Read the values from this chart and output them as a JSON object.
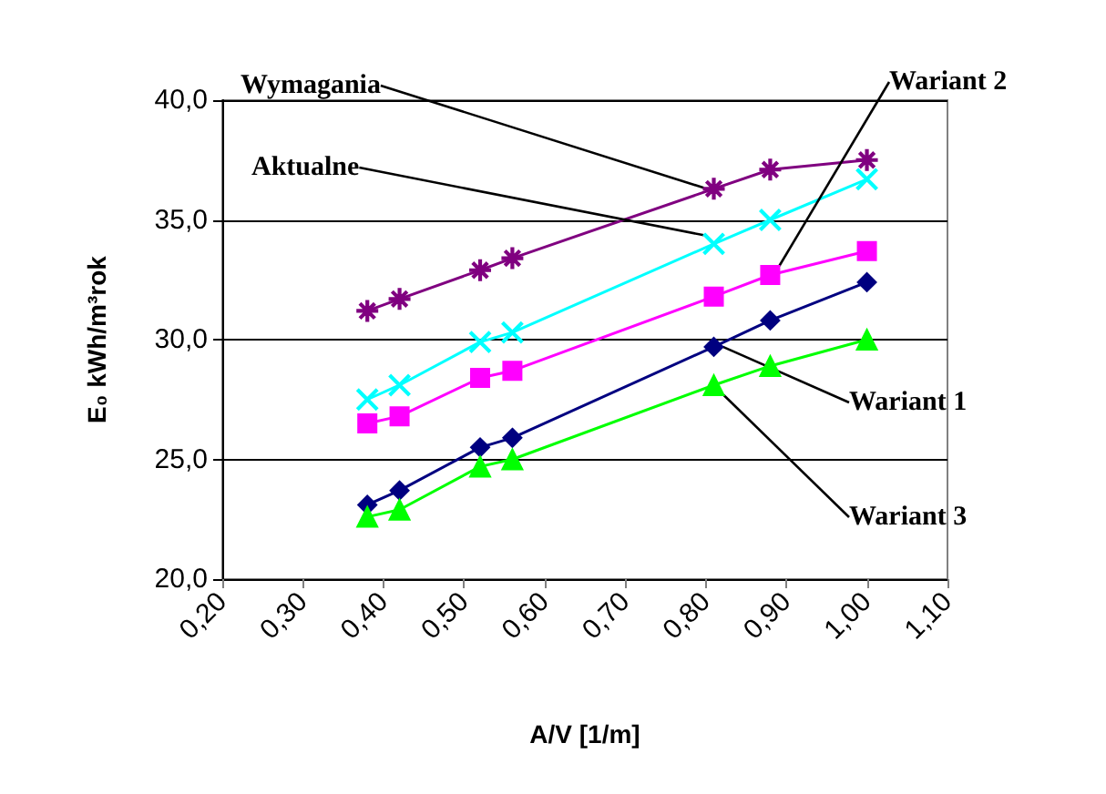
{
  "chart_data": {
    "type": "line",
    "xlabel": "A/V [1/m]",
    "ylabel": "E₀ kWh/m³rok",
    "xlim": [
      0.2,
      1.1
    ],
    "xticks": [
      {
        "value": 0.2,
        "label": "0,20"
      },
      {
        "value": 0.3,
        "label": "0,30"
      },
      {
        "value": 0.4,
        "label": "0,40"
      },
      {
        "value": 0.5,
        "label": "0,50"
      },
      {
        "value": 0.6,
        "label": "0,60"
      },
      {
        "value": 0.7,
        "label": "0,70"
      },
      {
        "value": 0.8,
        "label": "0,80"
      },
      {
        "value": 0.9,
        "label": "0,90"
      },
      {
        "value": 1.0,
        "label": "1,00"
      },
      {
        "value": 1.1,
        "label": "1,10"
      }
    ],
    "ylim": [
      20,
      40
    ],
    "yticks": [
      {
        "value": 20,
        "label": "20,0"
      },
      {
        "value": 25,
        "label": "25,0"
      },
      {
        "value": 30,
        "label": "30,0"
      },
      {
        "value": 35,
        "label": "35,0"
      },
      {
        "value": 40,
        "label": "40,0"
      }
    ],
    "x": [
      0.38,
      0.42,
      0.52,
      0.56,
      0.81,
      0.88,
      1.0
    ],
    "grid": "y",
    "legend": false,
    "series": [
      {
        "name": "Wymagania",
        "color": "#800080",
        "marker": "star",
        "values": [
          31.2,
          31.7,
          32.9,
          33.4,
          36.3,
          37.1,
          37.5
        ]
      },
      {
        "name": "Aktualne",
        "color": "#00ffff",
        "marker": "cross",
        "values": [
          27.5,
          28.1,
          29.9,
          30.3,
          34.0,
          35.0,
          36.7
        ]
      },
      {
        "name": "Wariant 2",
        "color": "#ff00ff",
        "marker": "square",
        "values": [
          26.5,
          26.8,
          28.4,
          28.7,
          31.8,
          32.7,
          33.7
        ]
      },
      {
        "name": "Wariant 1",
        "color": "#000080",
        "marker": "diamond",
        "values": [
          23.1,
          23.7,
          25.5,
          25.9,
          29.7,
          30.8,
          32.4
        ]
      },
      {
        "name": "Wariant 3",
        "color": "#00ff00",
        "marker": "triangle",
        "values": [
          22.6,
          22.9,
          24.7,
          25.0,
          28.1,
          28.9,
          30.0
        ]
      }
    ]
  }
}
